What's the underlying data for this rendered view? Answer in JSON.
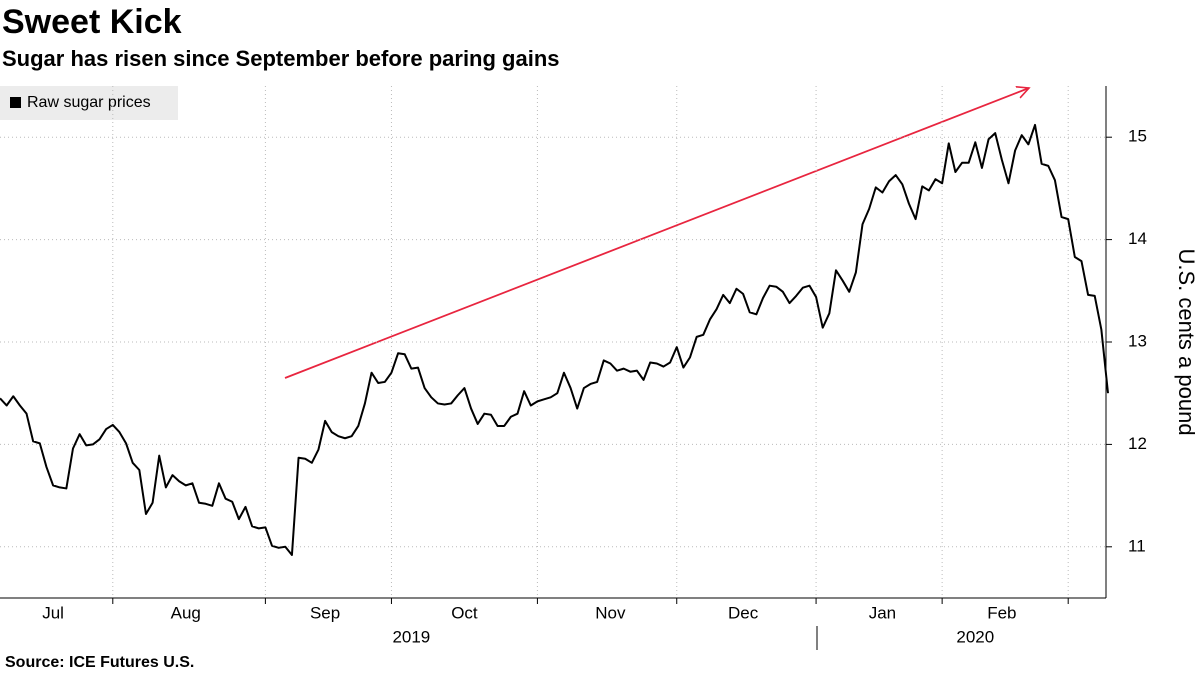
{
  "chart_data": {
    "type": "line",
    "title": "Sweet Kick",
    "subtitle": "Sugar has risen since September before paring gains",
    "source": "Source: ICE Futures U.S.",
    "y_label": "U.S. cents a pound",
    "series": [
      {
        "name": "Raw sugar prices",
        "color": "#000000",
        "values": [
          12.45,
          12.38,
          12.47,
          12.38,
          12.3,
          12.03,
          12.01,
          11.78,
          11.6,
          11.58,
          11.57,
          11.96,
          12.1,
          11.99,
          12.0,
          12.05,
          12.15,
          12.19,
          12.12,
          12.01,
          11.82,
          11.75,
          11.32,
          11.43,
          11.89,
          11.58,
          11.7,
          11.64,
          11.6,
          11.62,
          11.43,
          11.42,
          11.4,
          11.62,
          11.47,
          11.44,
          11.27,
          11.39,
          11.2,
          11.18,
          11.19,
          11.01,
          10.99,
          11.0,
          10.92,
          11.87,
          11.86,
          11.82,
          11.95,
          12.23,
          12.12,
          12.08,
          12.06,
          12.08,
          12.18,
          12.4,
          12.7,
          12.6,
          12.61,
          12.7,
          12.89,
          12.88,
          12.74,
          12.75,
          12.55,
          12.46,
          12.4,
          12.39,
          12.4,
          12.48,
          12.55,
          12.35,
          12.2,
          12.3,
          12.29,
          12.18,
          12.18,
          12.27,
          12.3,
          12.52,
          12.38,
          12.42,
          12.44,
          12.46,
          12.5,
          12.7,
          12.55,
          12.35,
          12.55,
          12.59,
          12.61,
          12.82,
          12.79,
          12.72,
          12.74,
          12.71,
          12.72,
          12.63,
          12.8,
          12.79,
          12.76,
          12.8,
          12.95,
          12.75,
          12.85,
          13.05,
          13.07,
          13.22,
          13.32,
          13.46,
          13.38,
          13.52,
          13.47,
          13.29,
          13.27,
          13.43,
          13.55,
          13.54,
          13.49,
          13.38,
          13.45,
          13.53,
          13.55,
          13.44,
          13.14,
          13.28,
          13.7,
          13.6,
          13.49,
          13.68,
          14.15,
          14.3,
          14.51,
          14.46,
          14.57,
          14.63,
          14.54,
          14.35,
          14.2,
          14.52,
          14.48,
          14.59,
          14.55,
          14.94,
          14.66,
          14.75,
          14.75,
          14.95,
          14.7,
          14.98,
          15.04,
          14.78,
          14.55,
          14.87,
          15.02,
          14.93,
          15.12,
          14.74,
          14.72,
          14.58,
          14.22,
          14.2,
          13.83,
          13.79,
          13.46,
          13.45,
          13.12,
          12.5
        ]
      }
    ],
    "xlim": [
      0,
      167
    ],
    "xgrid": [
      17,
      40,
      59,
      81,
      102,
      123,
      142,
      161
    ],
    "xticks": [
      {
        "value": 8,
        "label": "Jul"
      },
      {
        "value": 28,
        "label": "Aug"
      },
      {
        "value": 49,
        "label": "Sep"
      },
      {
        "value": 70,
        "label": "Oct"
      },
      {
        "value": 92,
        "label": "Nov"
      },
      {
        "value": 112,
        "label": "Dec"
      },
      {
        "value": 133,
        "label": "Jan"
      },
      {
        "value": 151,
        "label": "Feb"
      }
    ],
    "year_ticks": [
      {
        "value": 62,
        "label": "2019"
      },
      {
        "value": 147,
        "label": "2020"
      }
    ],
    "ylim": [
      10.5,
      15.5
    ],
    "yticks": [
      11,
      12,
      13,
      14,
      15
    ],
    "grid": true
  }
}
